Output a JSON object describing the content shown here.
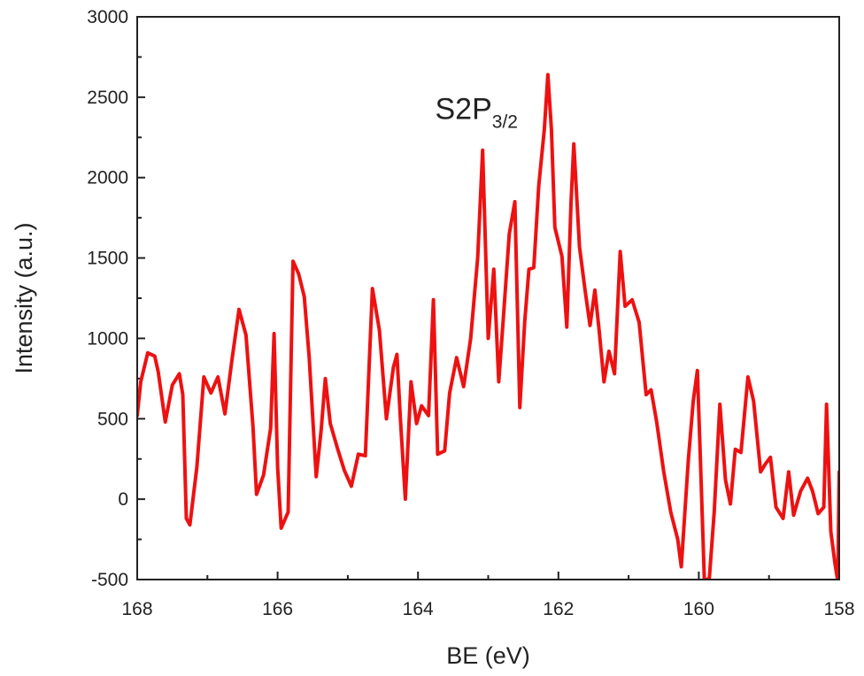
{
  "chart_data": {
    "type": "line",
    "title": "",
    "xlabel": "BE (eV)",
    "ylabel": "Intensity (a.u.)",
    "xlim": [
      168,
      158
    ],
    "ylim": [
      -500,
      3000
    ],
    "x_reversed": true,
    "grid": false,
    "legend": "none",
    "xticks": [
      168,
      166,
      164,
      162,
      160,
      158
    ],
    "xtick_labels": [
      "168",
      "166",
      "164",
      "162",
      "160",
      "158"
    ],
    "yticks": [
      -500,
      0,
      500,
      1000,
      1500,
      2000,
      2500,
      3000
    ],
    "ytick_labels": [
      "-500",
      "0",
      "500",
      "1000",
      "1500",
      "2000",
      "2500",
      "3000"
    ],
    "annotation": {
      "text": "S2P",
      "subscript": "3/2",
      "x": 163.0,
      "y": 2420
    },
    "series": [
      {
        "color": "#ee1111",
        "points": [
          [
            168.0,
            520
          ],
          [
            167.95,
            730
          ],
          [
            167.85,
            910
          ],
          [
            167.75,
            890
          ],
          [
            167.7,
            790
          ],
          [
            167.6,
            480
          ],
          [
            167.5,
            710
          ],
          [
            167.4,
            780
          ],
          [
            167.35,
            650
          ],
          [
            167.3,
            -120
          ],
          [
            167.25,
            -160
          ],
          [
            167.15,
            200
          ],
          [
            167.05,
            760
          ],
          [
            166.95,
            660
          ],
          [
            166.85,
            760
          ],
          [
            166.75,
            530
          ],
          [
            166.65,
            870
          ],
          [
            166.55,
            1180
          ],
          [
            166.45,
            1020
          ],
          [
            166.35,
            450
          ],
          [
            166.3,
            30
          ],
          [
            166.2,
            150
          ],
          [
            166.1,
            440
          ],
          [
            166.05,
            1030
          ],
          [
            166.0,
            200
          ],
          [
            165.95,
            -180
          ],
          [
            165.85,
            -80
          ],
          [
            165.78,
            1480
          ],
          [
            165.7,
            1400
          ],
          [
            165.62,
            1260
          ],
          [
            165.55,
            880
          ],
          [
            165.45,
            140
          ],
          [
            165.38,
            430
          ],
          [
            165.32,
            750
          ],
          [
            165.25,
            470
          ],
          [
            165.15,
            320
          ],
          [
            165.05,
            180
          ],
          [
            164.95,
            80
          ],
          [
            164.85,
            280
          ],
          [
            164.75,
            270
          ],
          [
            164.65,
            1310
          ],
          [
            164.55,
            1050
          ],
          [
            164.45,
            500
          ],
          [
            164.35,
            820
          ],
          [
            164.3,
            900
          ],
          [
            164.25,
            490
          ],
          [
            164.18,
            0
          ],
          [
            164.1,
            730
          ],
          [
            164.02,
            470
          ],
          [
            163.95,
            580
          ],
          [
            163.85,
            520
          ],
          [
            163.78,
            1240
          ],
          [
            163.72,
            280
          ],
          [
            163.62,
            300
          ],
          [
            163.55,
            660
          ],
          [
            163.45,
            880
          ],
          [
            163.35,
            700
          ],
          [
            163.25,
            1000
          ],
          [
            163.15,
            1500
          ],
          [
            163.08,
            2170
          ],
          [
            163.0,
            1000
          ],
          [
            162.92,
            1430
          ],
          [
            162.85,
            730
          ],
          [
            162.78,
            1150
          ],
          [
            162.7,
            1650
          ],
          [
            162.62,
            1850
          ],
          [
            162.55,
            570
          ],
          [
            162.48,
            1100
          ],
          [
            162.42,
            1430
          ],
          [
            162.35,
            1440
          ],
          [
            162.28,
            1950
          ],
          [
            162.2,
            2300
          ],
          [
            162.15,
            2640
          ],
          [
            162.1,
            2300
          ],
          [
            162.05,
            1690
          ],
          [
            161.95,
            1510
          ],
          [
            161.88,
            1070
          ],
          [
            161.82,
            1850
          ],
          [
            161.78,
            2210
          ],
          [
            161.7,
            1570
          ],
          [
            161.62,
            1300
          ],
          [
            161.55,
            1080
          ],
          [
            161.48,
            1300
          ],
          [
            161.42,
            1050
          ],
          [
            161.35,
            730
          ],
          [
            161.28,
            920
          ],
          [
            161.2,
            780
          ],
          [
            161.12,
            1540
          ],
          [
            161.05,
            1200
          ],
          [
            160.95,
            1240
          ],
          [
            160.85,
            1100
          ],
          [
            160.75,
            650
          ],
          [
            160.68,
            680
          ],
          [
            160.6,
            480
          ],
          [
            160.5,
            170
          ],
          [
            160.4,
            -80
          ],
          [
            160.3,
            -250
          ],
          [
            160.25,
            -420
          ],
          [
            160.15,
            240
          ],
          [
            160.08,
            610
          ],
          [
            160.02,
            800
          ],
          [
            159.98,
            280
          ],
          [
            159.92,
            -510
          ],
          [
            159.85,
            -490
          ],
          [
            159.78,
            -80
          ],
          [
            159.7,
            590
          ],
          [
            159.62,
            120
          ],
          [
            159.55,
            -30
          ],
          [
            159.48,
            310
          ],
          [
            159.4,
            290
          ],
          [
            159.3,
            760
          ],
          [
            159.22,
            610
          ],
          [
            159.12,
            170
          ],
          [
            159.05,
            220
          ],
          [
            158.98,
            260
          ],
          [
            158.9,
            -50
          ],
          [
            158.8,
            -120
          ],
          [
            158.72,
            170
          ],
          [
            158.65,
            -100
          ],
          [
            158.55,
            50
          ],
          [
            158.45,
            130
          ],
          [
            158.38,
            50
          ],
          [
            158.3,
            -90
          ],
          [
            158.22,
            -50
          ],
          [
            158.18,
            590
          ],
          [
            158.12,
            -200
          ],
          [
            158.06,
            -400
          ],
          [
            158.02,
            -510
          ],
          [
            158.0,
            170
          ]
        ]
      }
    ]
  }
}
